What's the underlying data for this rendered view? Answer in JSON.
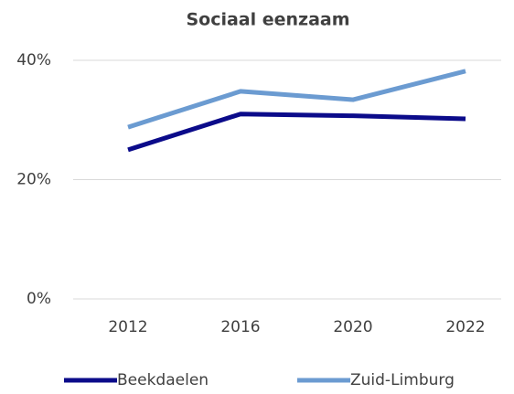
{
  "chart_data": {
    "type": "line",
    "title": "Sociaal eenzaam",
    "categories": [
      "2012",
      "2016",
      "2020",
      "2022"
    ],
    "series": [
      {
        "name": "Beekdaelen",
        "color": "#0b0b8a",
        "values": [
          25.0,
          31.0,
          30.7,
          30.2
        ]
      },
      {
        "name": "Zuid-Limburg",
        "color": "#6b9bd1",
        "values": [
          28.8,
          34.8,
          33.4,
          38.2
        ]
      }
    ],
    "ylim": [
      0,
      40
    ],
    "yticks": [
      {
        "value": 0,
        "label": "0%"
      },
      {
        "value": 20,
        "label": "20%"
      },
      {
        "value": 40,
        "label": "40%"
      }
    ],
    "grid": true,
    "legend": "bottom"
  }
}
